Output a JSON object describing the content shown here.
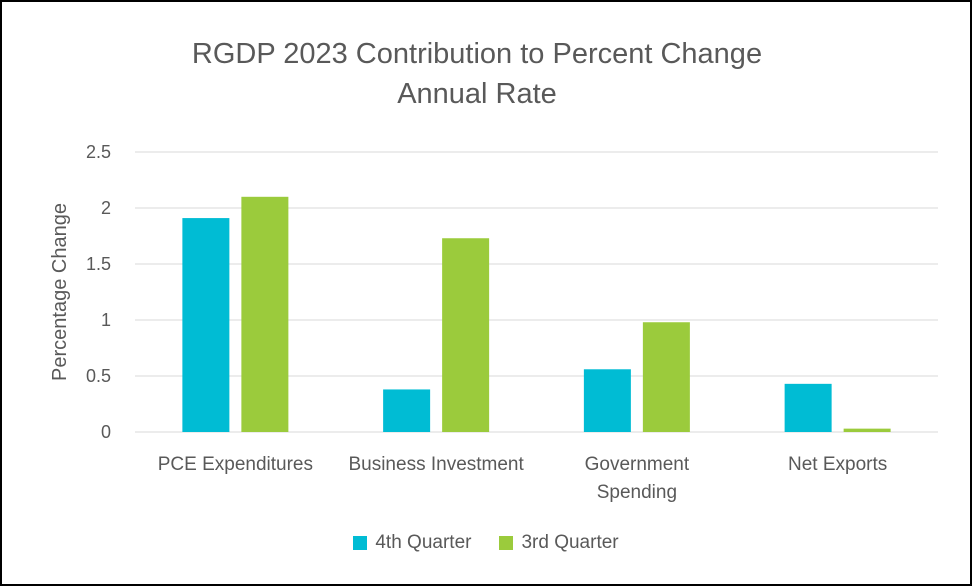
{
  "chart_data": {
    "type": "bar",
    "title_lines": [
      "RGDP 2023 Contribution to Percent Change",
      "Annual Rate"
    ],
    "ylabel": "Percentage Change",
    "xlabel": "",
    "categories": [
      [
        "PCE Expenditures"
      ],
      [
        "Business Investment"
      ],
      [
        "Government",
        "Spending"
      ],
      [
        "Net Exports"
      ]
    ],
    "series": [
      {
        "name": "4th Quarter",
        "color": "#00BCD4",
        "values": [
          1.91,
          0.38,
          0.56,
          0.43
        ]
      },
      {
        "name": "3rd Quarter",
        "color": "#9BCB3C",
        "values": [
          2.1,
          1.73,
          0.98,
          0.03
        ]
      }
    ],
    "ylim": [
      0,
      2.5
    ],
    "yticks": [
      "0",
      "0.5",
      "1",
      "1.5",
      "2",
      "2.5"
    ],
    "ytick_values": [
      0,
      0.5,
      1,
      1.5,
      2,
      2.5
    ],
    "grid": true,
    "gridline_color": "#D9D9D9",
    "legend_position": "bottom"
  }
}
